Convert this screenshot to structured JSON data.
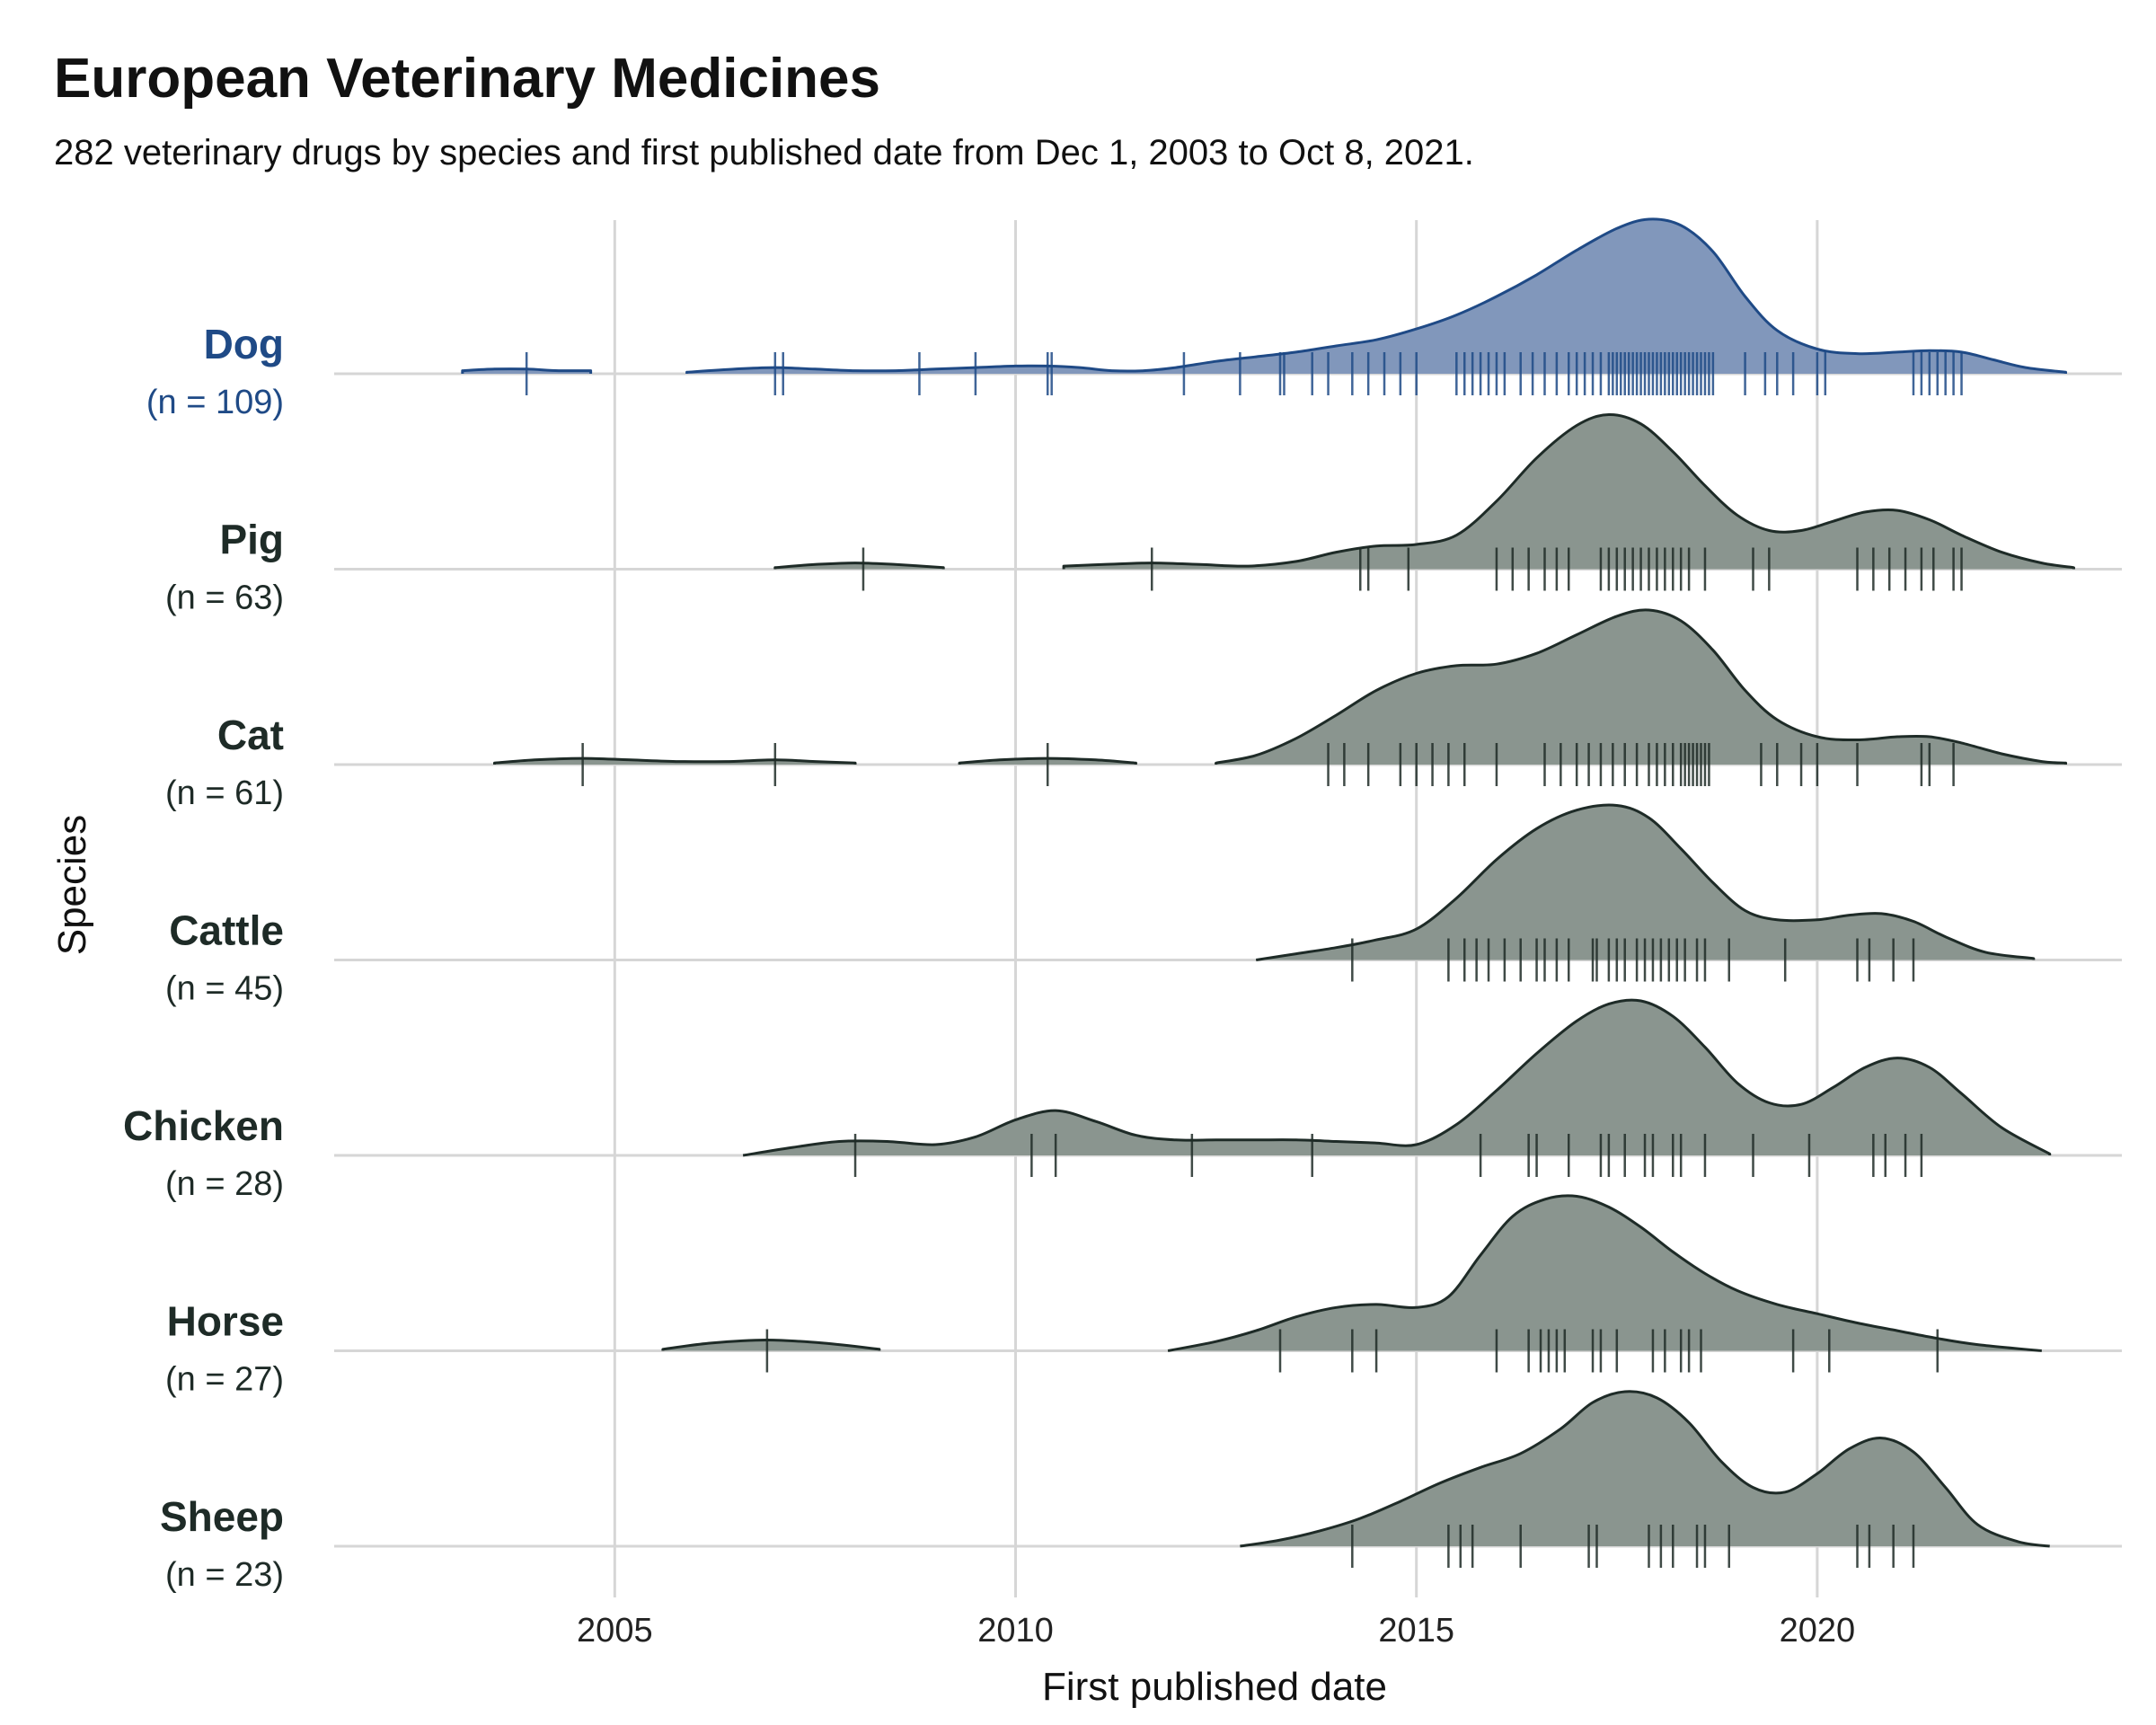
{
  "title": "European Veterinary Medicines",
  "subtitle": "282 veterinary drugs by species and first published date from Dec 1, 2003 to Oct 8, 2021.",
  "chart_data": {
    "type": "ridgeline",
    "xlabel": "First published date",
    "ylabel": "Species",
    "xlim": [
      2001.5,
      2023.8
    ],
    "x_ticks": [
      2005,
      2010,
      2015,
      2020
    ],
    "x_tick_labels": [
      "2005",
      "2010",
      "2015",
      "2020"
    ],
    "grid": true,
    "highlight_color": "#1f4a86",
    "highlight_fill": "#8197bb",
    "default_color": "#1e2b27",
    "default_fill": "#8a958f",
    "series": [
      {
        "species": "Dog",
        "n_label": "(n = 109)",
        "highlight": true,
        "segments": [
          {
            "x": [
              2003.1,
              2003.5,
              2003.9,
              2004.3,
              2004.7
            ],
            "y": [
              0.02,
              0.03,
              0.03,
              0.02,
              0.02
            ]
          },
          {
            "x": [
              2005.9,
              2006.5,
              2007.0,
              2007.5,
              2008.0,
              2008.5,
              2009.0,
              2009.5,
              2010.0,
              2010.4,
              2010.8,
              2011.2,
              2011.6,
              2012.0,
              2012.5,
              2013.0,
              2013.5,
              2014.0,
              2014.5,
              2015.0,
              2015.5,
              2016.0,
              2016.5,
              2017.0,
              2017.5,
              2017.9,
              2018.3,
              2018.7,
              2019.1,
              2019.5,
              2020.0,
              2020.5,
              2021.0,
              2021.4,
              2021.8,
              2022.2,
              2022.6,
              2023.1
            ],
            "y": [
              0.01,
              0.03,
              0.04,
              0.03,
              0.02,
              0.02,
              0.03,
              0.04,
              0.05,
              0.05,
              0.04,
              0.02,
              0.02,
              0.04,
              0.08,
              0.11,
              0.14,
              0.18,
              0.22,
              0.29,
              0.38,
              0.5,
              0.64,
              0.8,
              0.94,
              1.0,
              0.96,
              0.79,
              0.5,
              0.28,
              0.16,
              0.13,
              0.14,
              0.15,
              0.14,
              0.09,
              0.04,
              0.01
            ]
          }
        ],
        "rug": [
          2003.9,
          2007.0,
          2007.1,
          2008.8,
          2009.5,
          2010.4,
          2010.45,
          2012.1,
          2012.8,
          2013.3,
          2013.35,
          2013.7,
          2013.9,
          2014.2,
          2014.4,
          2014.6,
          2014.8,
          2015.0,
          2015.5,
          2015.6,
          2015.7,
          2015.8,
          2015.9,
          2016.0,
          2016.1,
          2016.3,
          2016.45,
          2016.6,
          2016.75,
          2016.9,
          2017.0,
          2017.1,
          2017.2,
          2017.3,
          2017.4,
          2017.45,
          2017.5,
          2017.55,
          2017.6,
          2017.65,
          2017.7,
          2017.75,
          2017.8,
          2017.85,
          2017.9,
          2017.95,
          2018.0,
          2018.05,
          2018.1,
          2018.15,
          2018.2,
          2018.25,
          2018.3,
          2018.35,
          2018.4,
          2018.45,
          2018.5,
          2018.55,
          2018.6,
          2018.65,
          2018.7,
          2019.1,
          2019.35,
          2019.5,
          2019.7,
          2020.0,
          2020.1,
          2021.2,
          2021.3,
          2021.4,
          2021.5,
          2021.6,
          2021.7,
          2021.8
        ]
      },
      {
        "species": "Pig",
        "n_label": "(n = 63)",
        "highlight": false,
        "segments": [
          {
            "x": [
              2007.0,
              2007.5,
              2008.0,
              2008.5,
              2009.1
            ],
            "y": [
              0.01,
              0.03,
              0.04,
              0.03,
              0.01
            ]
          },
          {
            "x": [
              2010.6,
              2011.1,
              2011.7,
              2012.3,
              2012.9,
              2013.5,
              2014.0,
              2014.5,
              2015.0,
              2015.5,
              2016.0,
              2016.5,
              2017.0,
              2017.4,
              2017.8,
              2018.2,
              2018.6,
              2019.0,
              2019.4,
              2019.8,
              2020.2,
              2020.6,
              2021.0,
              2021.4,
              2021.8,
              2022.3,
              2022.8,
              2023.2
            ],
            "y": [
              0.02,
              0.03,
              0.04,
              0.03,
              0.02,
              0.05,
              0.11,
              0.15,
              0.16,
              0.22,
              0.44,
              0.72,
              0.93,
              1.0,
              0.94,
              0.76,
              0.54,
              0.35,
              0.25,
              0.25,
              0.31,
              0.37,
              0.38,
              0.32,
              0.22,
              0.11,
              0.04,
              0.01
            ]
          }
        ],
        "rug": [
          2008.1,
          2011.7,
          2014.3,
          2014.4,
          2014.9,
          2016.0,
          2016.2,
          2016.4,
          2016.6,
          2016.75,
          2016.9,
          2017.3,
          2017.4,
          2017.5,
          2017.6,
          2017.7,
          2017.8,
          2017.9,
          2018.0,
          2018.1,
          2018.2,
          2018.3,
          2018.4,
          2018.6,
          2019.2,
          2019.4,
          2020.5,
          2020.7,
          2020.9,
          2021.1,
          2021.3,
          2021.45,
          2021.7,
          2021.8
        ]
      },
      {
        "species": "Cat",
        "n_label": "(n = 61)",
        "highlight": false,
        "segments": [
          {
            "x": [
              2003.5,
              2004.0,
              2004.6,
              2005.2,
              2005.8,
              2006.4,
              2007.0,
              2007.5,
              2008.0
            ],
            "y": [
              0.01,
              0.03,
              0.04,
              0.03,
              0.02,
              0.02,
              0.03,
              0.02,
              0.01
            ]
          },
          {
            "x": [
              2009.3,
              2009.8,
              2010.4,
              2011.0,
              2011.5
            ],
            "y": [
              0.01,
              0.03,
              0.04,
              0.03,
              0.01
            ]
          },
          {
            "x": [
              2012.5,
              2013.0,
              2013.5,
              2014.0,
              2014.5,
              2015.0,
              2015.5,
              2016.0,
              2016.5,
              2017.0,
              2017.5,
              2017.9,
              2018.3,
              2018.7,
              2019.1,
              2019.5,
              2020.0,
              2020.5,
              2021.0,
              2021.4,
              2021.8,
              2022.3,
              2022.8,
              2023.1
            ],
            "y": [
              0.01,
              0.06,
              0.17,
              0.32,
              0.48,
              0.59,
              0.64,
              0.65,
              0.72,
              0.84,
              0.96,
              1.0,
              0.93,
              0.74,
              0.48,
              0.29,
              0.18,
              0.16,
              0.18,
              0.18,
              0.14,
              0.07,
              0.02,
              0.01
            ]
          }
        ],
        "rug": [
          2004.6,
          2007.0,
          2010.4,
          2013.9,
          2014.1,
          2014.4,
          2014.8,
          2015.0,
          2015.2,
          2015.4,
          2015.6,
          2016.0,
          2016.6,
          2016.8,
          2017.0,
          2017.15,
          2017.3,
          2017.45,
          2017.6,
          2017.75,
          2017.9,
          2018.0,
          2018.1,
          2018.2,
          2018.3,
          2018.35,
          2018.4,
          2018.45,
          2018.5,
          2018.55,
          2018.6,
          2018.65,
          2019.3,
          2019.5,
          2019.8,
          2020.0,
          2020.5,
          2021.3,
          2021.4,
          2021.7
        ]
      },
      {
        "species": "Cattle",
        "n_label": "(n = 45)",
        "highlight": false,
        "segments": [
          {
            "x": [
              2013.0,
              2013.5,
              2014.0,
              2014.5,
              2015.0,
              2015.5,
              2016.0,
              2016.5,
              2017.0,
              2017.5,
              2017.9,
              2018.3,
              2018.7,
              2019.1,
              2019.5,
              2020.0,
              2020.4,
              2020.8,
              2021.2,
              2021.6,
              2022.1,
              2022.7
            ],
            "y": [
              0.0,
              0.04,
              0.08,
              0.13,
              0.2,
              0.4,
              0.65,
              0.85,
              0.97,
              1.0,
              0.92,
              0.72,
              0.5,
              0.32,
              0.26,
              0.26,
              0.29,
              0.3,
              0.25,
              0.15,
              0.05,
              0.01
            ]
          }
        ],
        "rug": [
          2014.2,
          2015.4,
          2015.6,
          2015.75,
          2015.9,
          2016.1,
          2016.3,
          2016.5,
          2016.6,
          2016.75,
          2016.9,
          2017.2,
          2017.25,
          2017.4,
          2017.5,
          2017.6,
          2017.75,
          2017.85,
          2017.95,
          2018.05,
          2018.15,
          2018.25,
          2018.35,
          2018.5,
          2018.6,
          2018.9,
          2019.6,
          2020.5,
          2020.65,
          2020.95,
          2021.2
        ]
      },
      {
        "species": "Chicken",
        "n_label": "(n = 28)",
        "highlight": false,
        "segments": [
          {
            "x": [
              2006.6,
              2007.2,
              2007.8,
              2008.4,
              2009.0,
              2009.5,
              2010.0,
              2010.5,
              2011.0,
              2011.5,
              2012.0,
              2012.5,
              2013.0,
              2013.5,
              2014.0,
              2014.5,
              2015.0,
              2015.5,
              2016.0,
              2016.5,
              2017.0,
              2017.4,
              2017.8,
              2018.2,
              2018.6,
              2019.0,
              2019.4,
              2019.8,
              2020.2,
              2020.6,
              2021.0,
              2021.4,
              2021.8,
              2022.3,
              2022.9
            ],
            "y": [
              0.0,
              0.05,
              0.09,
              0.09,
              0.07,
              0.12,
              0.23,
              0.29,
              0.22,
              0.13,
              0.1,
              0.1,
              0.1,
              0.1,
              0.09,
              0.08,
              0.07,
              0.2,
              0.42,
              0.66,
              0.87,
              0.98,
              1.0,
              0.9,
              0.7,
              0.47,
              0.34,
              0.33,
              0.44,
              0.57,
              0.63,
              0.57,
              0.4,
              0.18,
              0.01
            ]
          }
        ],
        "rug": [
          2008.0,
          2010.2,
          2010.5,
          2012.2,
          2013.7,
          2015.8,
          2016.4,
          2016.5,
          2016.9,
          2017.3,
          2017.4,
          2017.6,
          2017.85,
          2017.95,
          2018.2,
          2018.3,
          2018.6,
          2019.2,
          2019.9,
          2020.7,
          2020.85,
          2021.1,
          2021.3
        ]
      },
      {
        "species": "Horse",
        "n_label": "(n = 27)",
        "highlight": false,
        "segments": [
          {
            "x": [
              2005.6,
              2006.2,
              2006.9,
              2007.6,
              2008.3
            ],
            "y": [
              0.01,
              0.05,
              0.07,
              0.05,
              0.01
            ]
          },
          {
            "x": [
              2011.9,
              2012.5,
              2013.0,
              2013.5,
              2014.0,
              2014.5,
              2015.0,
              2015.4,
              2015.8,
              2016.2,
              2016.6,
              2017.0,
              2017.4,
              2017.8,
              2018.2,
              2018.6,
              2019.0,
              2019.5,
              2020.0,
              2020.5,
              2021.0,
              2021.5,
              2022.0,
              2022.8
            ],
            "y": [
              0.0,
              0.06,
              0.13,
              0.22,
              0.28,
              0.3,
              0.28,
              0.35,
              0.62,
              0.87,
              0.98,
              1.0,
              0.93,
              0.8,
              0.64,
              0.5,
              0.39,
              0.3,
              0.24,
              0.18,
              0.13,
              0.08,
              0.04,
              0.0
            ]
          }
        ],
        "rug": [
          2006.9,
          2013.3,
          2014.2,
          2014.5,
          2016.0,
          2016.4,
          2016.55,
          2016.65,
          2016.75,
          2016.85,
          2017.2,
          2017.3,
          2017.5,
          2017.95,
          2018.1,
          2018.3,
          2018.4,
          2018.55,
          2019.7,
          2020.15,
          2021.5
        ]
      },
      {
        "species": "Sheep",
        "n_label": "(n = 23)",
        "highlight": false,
        "segments": [
          {
            "x": [
              2012.8,
              2013.3,
              2013.8,
              2014.3,
              2014.8,
              2015.3,
              2015.8,
              2016.3,
              2016.8,
              2017.2,
              2017.6,
              2018.0,
              2018.4,
              2018.8,
              2019.2,
              2019.6,
              2020.0,
              2020.4,
              2020.8,
              2021.2,
              2021.6,
              2022.0,
              2022.5,
              2022.9
            ],
            "y": [
              0.0,
              0.04,
              0.1,
              0.18,
              0.29,
              0.41,
              0.51,
              0.6,
              0.76,
              0.93,
              1.0,
              0.96,
              0.8,
              0.55,
              0.38,
              0.35,
              0.47,
              0.63,
              0.7,
              0.61,
              0.38,
              0.14,
              0.03,
              0.0
            ]
          }
        ],
        "rug": [
          2014.2,
          2015.4,
          2015.55,
          2015.7,
          2016.3,
          2017.15,
          2017.25,
          2017.9,
          2018.05,
          2018.2,
          2018.5,
          2018.6,
          2018.9,
          2020.5,
          2020.65,
          2020.95,
          2021.2
        ]
      }
    ]
  }
}
